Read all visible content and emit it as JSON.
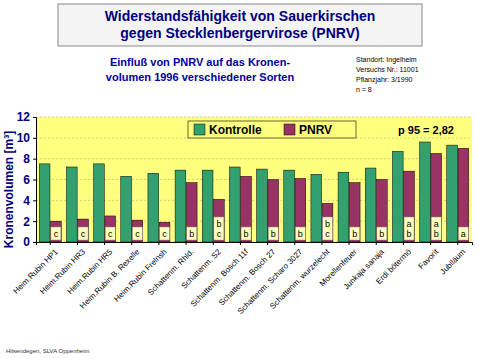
{
  "chart_data": {
    "type": "bar",
    "title": "Widerstandsfähigkeit von Sauerkirschen\ngegen Stecklenbergervirose (PNRV)",
    "subtitle": "Einfluß von PNRV auf das Kronen-\nvolumen 1996 verschiedener Sorten",
    "info": [
      "Standort: Ingelheim",
      "Versuchs Nr.: 11001",
      "Pflanzjahr: 3/1990",
      "n = 8"
    ],
    "y_label": "Kronenvolumen [m³]",
    "annotation": "p 95 = 2,82",
    "source": "Hilsendegen, SLVA Oppenheim",
    "categories": [
      "Heim.Rubin HP1",
      "Heim.Rubin HR3",
      "Heim.Rubin HR5",
      "Heim.Rubin B. Rexelle",
      "Heim.Rubin Frelnsh",
      "Schattenm. Rhld.",
      "Schattenm. S2",
      "Schattenm. Bosch 11f",
      "Schattenm. Bosch 27",
      "Schattenm. Scharo 3027",
      "Schattenm. wurzelecht",
      "Morellenfeuer",
      "Junkaja sanaja",
      "Erdi bötermö",
      "Favorit",
      "Jubiläum"
    ],
    "series": [
      {
        "name": "Kontrolle",
        "color": "#33a070",
        "values": [
          7.5,
          7.2,
          7.5,
          6.3,
          6.6,
          6.9,
          6.9,
          7.2,
          7.0,
          6.9,
          6.5,
          6.7,
          7.1,
          8.7,
          9.6,
          9.3
        ]
      },
      {
        "name": "PNRV",
        "color": "#993366",
        "values": [
          2.0,
          2.2,
          2.5,
          2.1,
          1.9,
          5.7,
          4.1,
          6.3,
          6.0,
          6.1,
          3.7,
          5.7,
          6.0,
          6.8,
          8.5,
          9.0
        ]
      }
    ],
    "letters": [
      "c",
      "c",
      "c",
      "c",
      "c",
      "b",
      "bc",
      "b",
      "b",
      "b",
      "bc",
      "b",
      "b",
      "ab",
      "ab",
      "a"
    ],
    "ylim": [
      0,
      12
    ],
    "yticks": [
      0,
      2,
      4,
      6,
      8,
      10,
      12
    ],
    "grid": true,
    "legend": "top"
  }
}
